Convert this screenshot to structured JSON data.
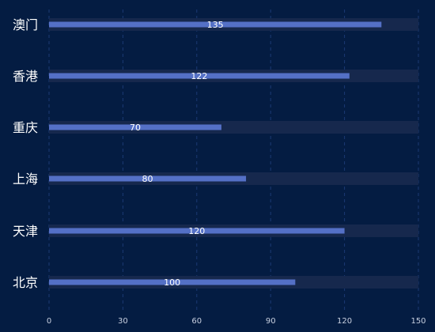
{
  "colors": {
    "background": "#041c42",
    "bar": "#5470c6",
    "track": "#16284d",
    "grid": "#1b3a74",
    "text": "#ffffff"
  },
  "chart_data": {
    "type": "bar",
    "orientation": "horizontal",
    "categories": [
      "澳门",
      "香港",
      "重庆",
      "上海",
      "天津",
      "北京"
    ],
    "values": [
      135,
      122,
      70,
      80,
      120,
      100
    ],
    "xlim": [
      0,
      150
    ],
    "xticks": [
      0,
      30,
      60,
      90,
      120,
      150
    ],
    "grid": true,
    "background_track": true,
    "data_labels": true
  }
}
